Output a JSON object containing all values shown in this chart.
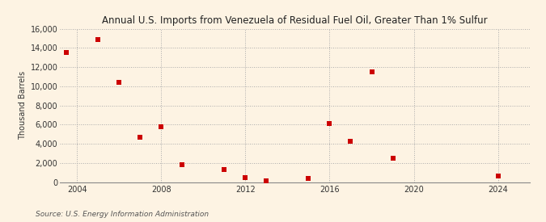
{
  "title": "Annual U.S. Imports from Venezuela of Residual Fuel Oil, Greater Than 1% Sulfur",
  "ylabel": "Thousand Barrels",
  "source": "Source: U.S. Energy Information Administration",
  "background_color": "#fdf3e3",
  "plot_bg_color": "#fdf3e3",
  "marker_color": "#cc0000",
  "xlim": [
    2003.2,
    2025.5
  ],
  "ylim": [
    0,
    16000
  ],
  "xticks": [
    2004,
    2008,
    2012,
    2016,
    2020,
    2024
  ],
  "yticks": [
    0,
    2000,
    4000,
    6000,
    8000,
    10000,
    12000,
    14000,
    16000
  ],
  "ytick_labels": [
    "0",
    "2,000",
    "4,000",
    "6,000",
    "8,000",
    "10,000",
    "12,000",
    "14,000",
    "16,000"
  ],
  "data": [
    [
      2003.5,
      13500
    ],
    [
      2005,
      14900
    ],
    [
      2006,
      10400
    ],
    [
      2007,
      4700
    ],
    [
      2008,
      5800
    ],
    [
      2009,
      1800
    ],
    [
      2011,
      1300
    ],
    [
      2012,
      500
    ],
    [
      2013,
      100
    ],
    [
      2015,
      400
    ],
    [
      2016,
      6100
    ],
    [
      2017,
      4300
    ],
    [
      2018,
      11500
    ],
    [
      2019,
      2500
    ],
    [
      2024,
      600
    ]
  ]
}
